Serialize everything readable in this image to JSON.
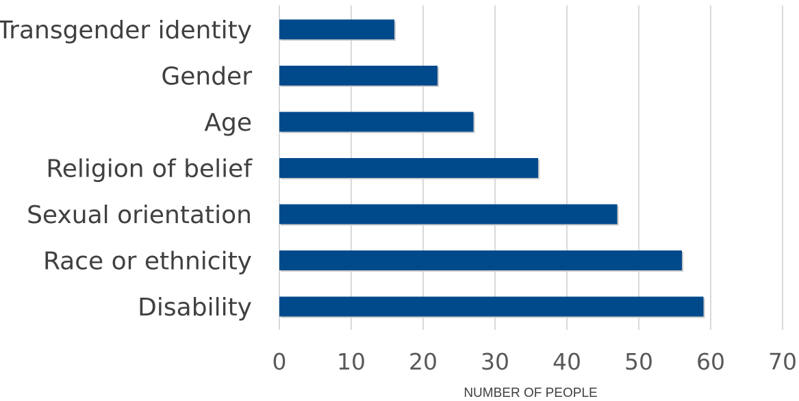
{
  "chart_data": {
    "type": "bar",
    "orientation": "horizontal",
    "title": "",
    "xlabel": "NUMBER OF PEOPLE",
    "ylabel": "",
    "categories": [
      "Transgender identity",
      "Gender",
      "Age",
      "Religion of belief",
      "Sexual orientation",
      "Race or ethnicity",
      "Disability"
    ],
    "values": [
      16,
      22,
      27,
      36,
      47,
      56,
      59
    ],
    "xlim": [
      0,
      70
    ],
    "xticks": [
      0,
      10,
      20,
      30,
      40,
      50,
      60,
      70
    ],
    "grid": "vertical",
    "legend": "none",
    "bar_color": "#004a8c"
  }
}
